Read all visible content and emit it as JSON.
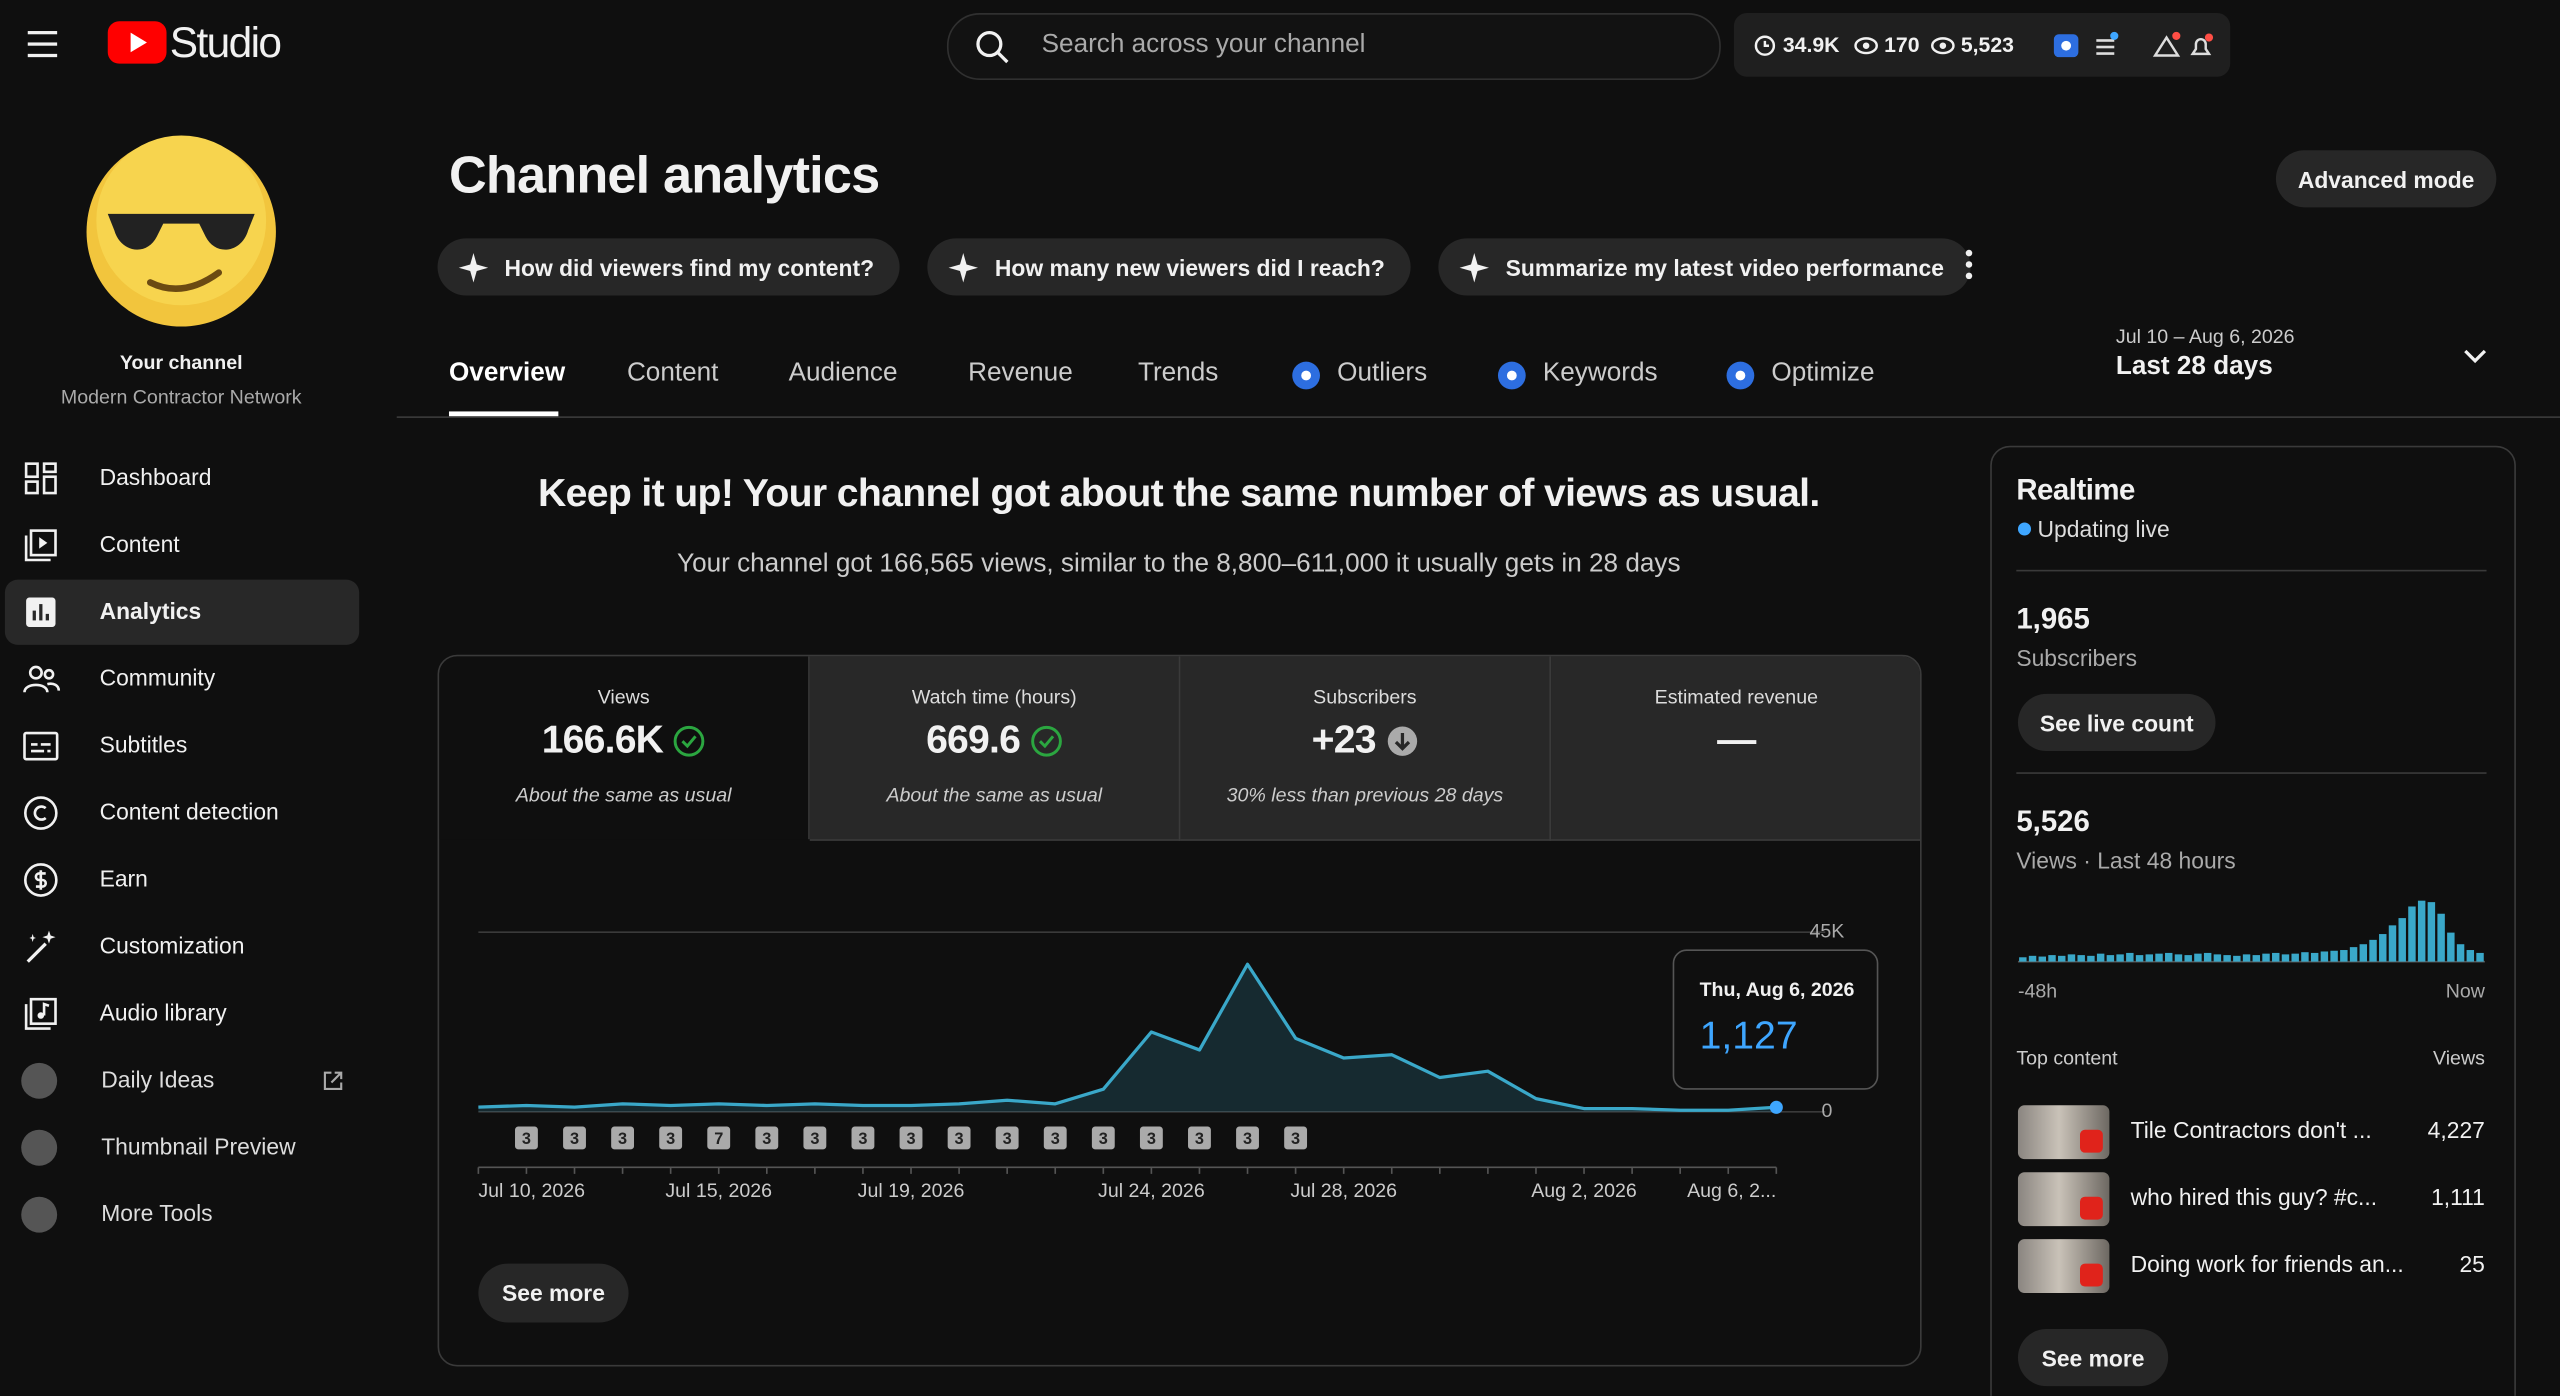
{
  "header": {
    "logo": "Studio",
    "search_placeholder": "Search across your channel",
    "stats": [
      "34.9K",
      "170",
      "5,523"
    ]
  },
  "sidebar": {
    "channel_label": "Your channel",
    "channel_name": "Modern Contractor Network",
    "nav": [
      {
        "label": "Dashboard"
      },
      {
        "label": "Content"
      },
      {
        "label": "Analytics",
        "selected": true
      },
      {
        "label": "Community"
      },
      {
        "label": "Subtitles"
      },
      {
        "label": "Content detection"
      },
      {
        "label": "Earn"
      },
      {
        "label": "Customization"
      },
      {
        "label": "Audio library"
      },
      {
        "label": "Daily Ideas",
        "extension": true,
        "external": true
      },
      {
        "label": "Thumbnail Preview",
        "extension": true
      },
      {
        "label": "More Tools",
        "extension": true
      }
    ]
  },
  "page": {
    "title": "Channel analytics",
    "advanced_button": "Advanced mode",
    "prompts": [
      "How did viewers find my content?",
      "How many new viewers did I reach?",
      "Summarize my latest video performance"
    ],
    "tabs": [
      {
        "label": "Overview",
        "selected": true
      },
      {
        "label": "Content"
      },
      {
        "label": "Audience"
      },
      {
        "label": "Revenue"
      },
      {
        "label": "Trends"
      },
      {
        "label": "Outliers",
        "icon": true
      },
      {
        "label": "Keywords",
        "icon": true
      },
      {
        "label": "Optimize",
        "icon": true
      }
    ],
    "date_range": "Jul 10 – Aug 6, 2026",
    "period": "Last 28 days"
  },
  "summary": {
    "headline": "Keep it up! Your channel got about the same number of views as usual.",
    "detail": "Your channel got 166,565 views, similar to the 8,800–611,000 it usually gets in 28 days"
  },
  "metrics": [
    {
      "label": "Views",
      "value": "166.6K",
      "note": "About the same as usual",
      "status": "ok",
      "selected": true
    },
    {
      "label": "Watch time (hours)",
      "value": "669.6",
      "note": "About the same as usual",
      "status": "ok"
    },
    {
      "label": "Subscribers",
      "value": "+23",
      "note": "30% less than previous 28 days",
      "status": "down"
    },
    {
      "label": "Estimated revenue",
      "value": "—"
    }
  ],
  "chart_data": {
    "type": "line",
    "categories": [
      "Jul 10, 2026",
      null,
      null,
      null,
      null,
      "Jul 15, 2026",
      null,
      null,
      null,
      "Jul 19, 2026",
      null,
      null,
      null,
      null,
      "Jul 24, 2026",
      null,
      null,
      null,
      "Jul 28, 2026",
      null,
      null,
      null,
      null,
      "Aug 2, 2026",
      null,
      null,
      null,
      "Aug 6, 2..."
    ],
    "values": [
      1200,
      1600,
      1200,
      2000,
      1600,
      2000,
      1600,
      2000,
      1600,
      1600,
      2000,
      2900,
      2000,
      5700,
      20000,
      15500,
      37000,
      18400,
      13500,
      14300,
      8600,
      10200,
      3300,
      800,
      800,
      400,
      400,
      1127
    ],
    "video_counts": [
      null,
      3,
      3,
      3,
      3,
      7,
      3,
      3,
      3,
      3,
      3,
      3,
      3,
      3,
      3,
      3,
      3,
      3,
      null,
      null,
      null,
      null,
      null,
      null,
      null,
      null,
      null,
      null
    ],
    "color": "#3aa8c9",
    "ylim": [
      0,
      45000
    ],
    "yticks": [
      0,
      {
        "value": 45000,
        "label": "45K"
      }
    ],
    "grid": true,
    "tooltip": {
      "date": "Thu, Aug 6, 2026",
      "value_label": "1,127"
    },
    "see_more": "See more"
  },
  "realtime": {
    "title": "Realtime",
    "status": "Updating live",
    "subscribers": "1,965",
    "subscribers_label": "Subscribers",
    "live_button": "See live count",
    "views": "5,526",
    "views_label": "Views · Last 48 hours",
    "bars": [
      30,
      40,
      35,
      45,
      40,
      50,
      45,
      40,
      55,
      45,
      50,
      60,
      45,
      50,
      55,
      60,
      50,
      45,
      55,
      60,
      50,
      45,
      40,
      50,
      45,
      55,
      60,
      50,
      55,
      65,
      60,
      70,
      75,
      80,
      100,
      120,
      150,
      190,
      250,
      300,
      380,
      420,
      410,
      330,
      200,
      120,
      80,
      60
    ],
    "bars_ylim": [
      0,
      450
    ],
    "bars_color": "#3aa8c9",
    "start_label": "-48h",
    "end_label": "Now",
    "top_content_label": "Top content",
    "top_content_views_label": "Views",
    "top_content": [
      {
        "title": "Tile Contractors don't ...",
        "views": "4,227"
      },
      {
        "title": "who hired this guy? #c...",
        "views": "1,111"
      },
      {
        "title": "Doing work for friends an...",
        "views": "25"
      }
    ],
    "see_more": "See more"
  }
}
